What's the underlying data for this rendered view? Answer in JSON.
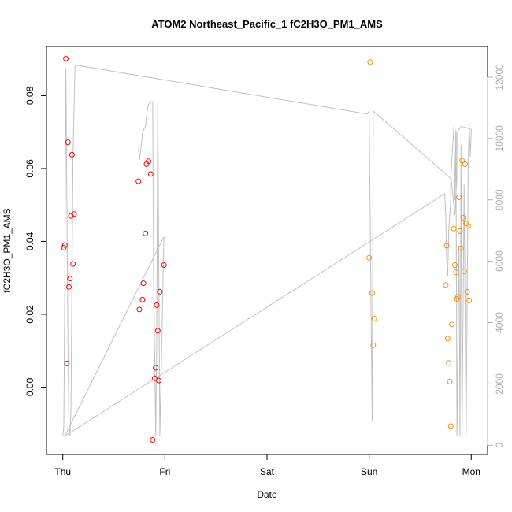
{
  "chart_data": {
    "type": "scatter",
    "title": "ATOM2 Northeast_Pacific_1 fC2H3O_PM1_AMS",
    "xlabel": "Date",
    "ylabel": "fC2H3O_PM1_AMS",
    "x_ticks": [
      "Thu",
      "Fri",
      "Sat",
      "Sun",
      "Mon"
    ],
    "x_tick_values": [
      0,
      1,
      2,
      3,
      4
    ],
    "xlim": [
      -0.16,
      4.16
    ],
    "ylim": [
      -0.0185,
      0.0935
    ],
    "y_ticks": [
      0.0,
      0.02,
      0.04,
      0.06,
      0.08
    ],
    "y_tick_labels": [
      "0.00",
      "0.02",
      "0.04",
      "0.06",
      "0.08"
    ],
    "y2lim": [
      -300,
      13000
    ],
    "y2_ticks": [
      0,
      2000,
      4000,
      6000,
      8000,
      10000,
      12000
    ],
    "y2_tick_labels": [
      "0",
      "2000",
      "4000",
      "6000",
      "8000",
      "10000",
      "12000"
    ],
    "grid": false,
    "legend": "none",
    "series": [
      {
        "color": "#ff0000",
        "marker": "open-circle",
        "points": [
          [
            0.01,
            0.0383
          ],
          [
            0.02,
            0.039
          ],
          [
            0.03,
            0.0902
          ],
          [
            0.04,
            0.0065
          ],
          [
            0.05,
            0.0672
          ],
          [
            0.06,
            0.0275
          ],
          [
            0.07,
            0.0298
          ],
          [
            0.08,
            0.047
          ],
          [
            0.09,
            0.0638
          ],
          [
            0.1,
            0.0338
          ],
          [
            0.11,
            0.0475
          ],
          [
            0.74,
            0.0565
          ],
          [
            0.75,
            0.0213
          ],
          [
            0.78,
            0.024
          ],
          [
            0.79,
            0.0285
          ],
          [
            0.81,
            0.0422
          ],
          [
            0.82,
            0.0612
          ],
          [
            0.84,
            0.062
          ],
          [
            0.86,
            0.0585
          ],
          [
            0.88,
            -0.0145
          ],
          [
            0.9,
            0.0024
          ],
          [
            0.91,
            0.0053
          ],
          [
            0.92,
            0.0225
          ],
          [
            0.93,
            0.0155
          ],
          [
            0.94,
            0.0018
          ],
          [
            0.95,
            0.0262
          ],
          [
            0.99,
            0.0335
          ]
        ]
      },
      {
        "color": "#ff8c00",
        "marker": "open-circle",
        "points": [
          [
            3.0,
            0.0355
          ],
          [
            3.01,
            0.0892
          ],
          [
            3.03,
            0.0258
          ],
          [
            3.04,
            0.0115
          ],
          [
            3.05,
            0.0188
          ],
          [
            3.75,
            0.028
          ],
          [
            3.76,
            0.0388
          ],
          [
            3.77,
            0.0133
          ],
          [
            3.78,
            0.0066
          ],
          [
            3.79,
            0.0015
          ],
          [
            3.8,
            -0.0107
          ],
          [
            3.81,
            0.0172
          ],
          [
            3.83,
            0.0435
          ],
          [
            3.84,
            0.0335
          ],
          [
            3.85,
            0.0315
          ],
          [
            3.86,
            0.0242
          ],
          [
            3.87,
            0.0248
          ],
          [
            3.88,
            0.0521
          ],
          [
            3.89,
            0.0428
          ],
          [
            3.9,
            0.0381
          ],
          [
            3.91,
            0.0622
          ],
          [
            3.92,
            0.0465
          ],
          [
            3.93,
            0.0318
          ],
          [
            3.94,
            0.0612
          ],
          [
            3.95,
            0.0449
          ],
          [
            3.96,
            0.0262
          ],
          [
            3.97,
            0.0442
          ],
          [
            3.98,
            0.0238
          ]
        ]
      },
      {
        "color": "#c0c0c0",
        "type": "line",
        "axis": "right",
        "points": [
          [
            0.0,
            300
          ],
          [
            0.01,
            600
          ],
          [
            0.02,
            5500
          ],
          [
            0.03,
            12300
          ],
          [
            0.04,
            8000
          ],
          [
            0.05,
            3500
          ],
          [
            0.06,
            700
          ],
          [
            0.07,
            300
          ],
          [
            0.08,
            1200
          ],
          [
            0.09,
            5500
          ],
          [
            0.1,
            9500
          ],
          [
            0.11,
            11000
          ],
          [
            0.12,
            12400
          ],
          [
            2.98,
            10800
          ],
          [
            3.0,
            10900
          ],
          [
            3.03,
            800
          ],
          [
            3.04,
            10900
          ],
          [
            3.8,
            8700
          ],
          [
            3.83,
            10400
          ],
          [
            3.84,
            8000
          ],
          [
            3.85,
            10300
          ],
          [
            3.86,
            300
          ],
          [
            3.88,
            6500
          ],
          [
            3.89,
            300
          ],
          [
            3.9,
            9800
          ],
          [
            3.91,
            300
          ],
          [
            3.93,
            8500
          ],
          [
            3.95,
            300
          ],
          [
            3.97,
            9000
          ],
          [
            3.98,
            10500
          ],
          [
            3.99,
            9400
          ],
          [
            4.0,
            10200
          ],
          [
            4.0,
            10300
          ],
          [
            3.9,
            10400
          ],
          [
            3.86,
            10200
          ],
          [
            3.86,
            8800
          ],
          [
            3.84,
            7500
          ],
          [
            3.8,
            8800
          ],
          [
            3.8,
            8000
          ],
          [
            3.78,
            7000
          ],
          [
            3.77,
            5500
          ],
          [
            3.76,
            6000
          ],
          [
            3.75,
            7500
          ],
          [
            3.74,
            8200
          ],
          [
            0.02,
            300
          ],
          [
            0.99,
            6800
          ],
          [
            0.98,
            5200
          ],
          [
            0.97,
            3400
          ],
          [
            0.95,
            300
          ],
          [
            0.93,
            11200
          ],
          [
            0.92,
            3500
          ],
          [
            0.91,
            300
          ],
          [
            0.9,
            3000
          ],
          [
            0.89,
            5300
          ],
          [
            0.88,
            11200
          ],
          [
            0.85,
            11200
          ],
          [
            0.83,
            11000
          ],
          [
            0.81,
            10400
          ],
          [
            0.78,
            10200
          ],
          [
            0.77,
            9800
          ],
          [
            0.75,
            9300
          ],
          [
            0.74,
            9700
          ]
        ]
      }
    ]
  }
}
